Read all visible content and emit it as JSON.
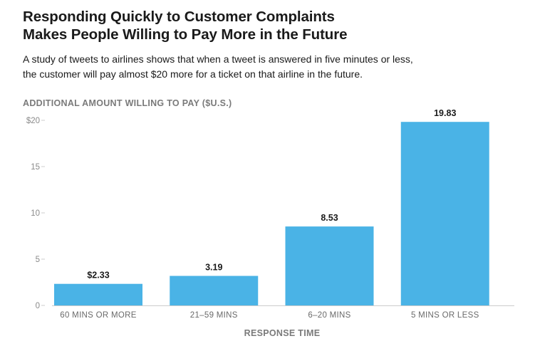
{
  "header": {
    "title_line1": "Responding Quickly to Customer Complaints",
    "title_line2": "Makes People Willing to Pay More in the Future",
    "subtitle_line1": "A study of tweets to airlines shows that when a tweet is answered in five minutes or less,",
    "subtitle_line2": "the customer will pay almost $20 more for a ticket on that airline in the future."
  },
  "colors": {
    "bar": "#4ab3e6",
    "text": "#1a1a1a",
    "muted": "#7a7a7a",
    "gridline": "#cccccc"
  },
  "chart_data": {
    "type": "bar",
    "title": "Responding Quickly to Customer Complaints Makes People Willing to Pay More in the Future",
    "ylabel": "ADDITIONAL AMOUNT WILLING TO PAY ($U.S.)",
    "xlabel": "RESPONSE TIME",
    "categories": [
      "60 MINS OR MORE",
      "21–59 MINS",
      "6–20 MINS",
      "5 MINS OR LESS"
    ],
    "values": [
      2.33,
      3.19,
      8.53,
      19.83
    ],
    "value_labels": [
      "$2.33",
      "3.19",
      "8.53",
      "19.83"
    ],
    "ylim": [
      0,
      20
    ],
    "yticks": [
      0,
      5,
      10,
      15,
      20
    ],
    "ytick_labels": [
      "0",
      "5",
      "10",
      "15",
      "$20"
    ],
    "grid": false,
    "legend": "none"
  }
}
